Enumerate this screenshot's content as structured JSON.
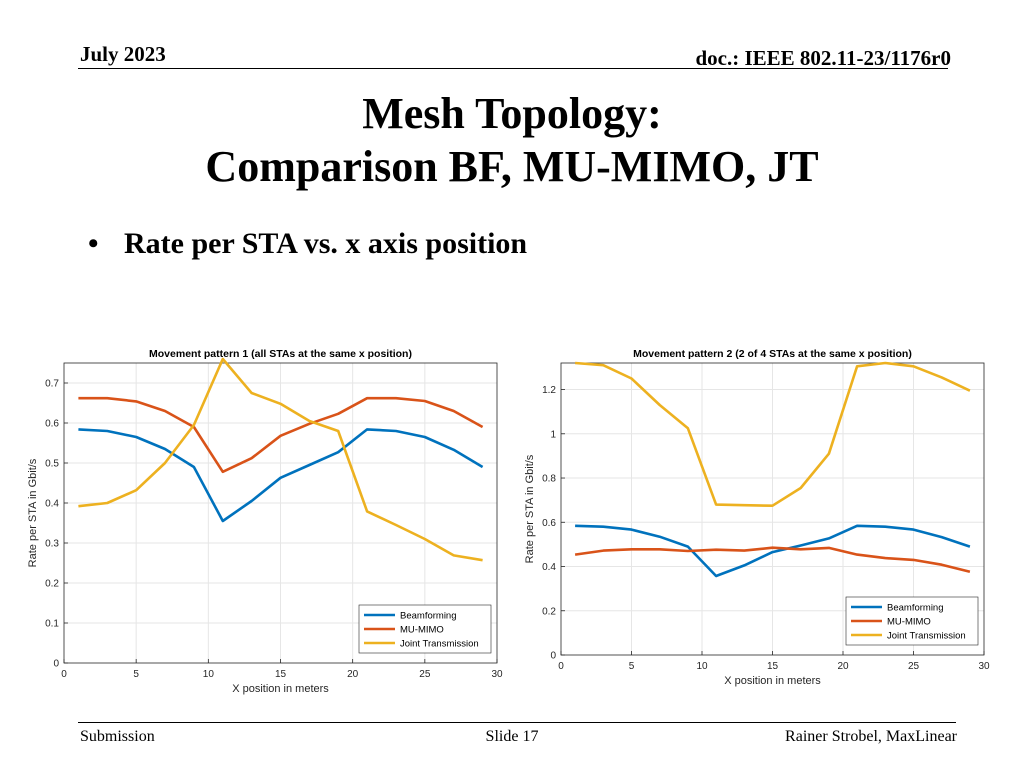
{
  "header": {
    "date": "July 2023",
    "doc": "doc.: IEEE 802.11-23/1176r0"
  },
  "title": {
    "line1": "Mesh Topology:",
    "line2": "Comparison BF, MU-MIMO, JT"
  },
  "bullet": {
    "marker": "•",
    "text": "Rate per STA vs. x axis position"
  },
  "footer": {
    "left": "Submission",
    "center": "Slide 17",
    "right": "Rainer Strobel, MaxLinear"
  },
  "colors": {
    "beamforming": "#0072BD",
    "mu_mimo": "#D95319",
    "joint_transmission": "#EDB120"
  },
  "chart_data": [
    {
      "type": "line",
      "title": "Movement pattern 1 (all STAs at the same x position)",
      "xlabel": "X position in meters",
      "ylabel": "Rate per STA in Gbit/s",
      "xlim": [
        0,
        30
      ],
      "ylim": [
        0,
        0.75
      ],
      "xticks": [
        0,
        5,
        10,
        15,
        20,
        25,
        30
      ],
      "yticks": [
        0,
        0.1,
        0.2,
        0.3,
        0.4,
        0.5,
        0.6,
        0.7
      ],
      "ytick_labels": [
        "0",
        "0.1",
        "0.2",
        "0.3",
        "0.4",
        "0.5",
        "0.6",
        "0.7"
      ],
      "grid": true,
      "legend_position": "bottom-right",
      "x": [
        1,
        3,
        5,
        7,
        9,
        11,
        13,
        15,
        17,
        19,
        21,
        23,
        25,
        27,
        29
      ],
      "series": [
        {
          "name": "Beamforming",
          "color": "#0072BD",
          "values": [
            0.584,
            0.58,
            0.565,
            0.535,
            0.49,
            0.355,
            0.405,
            0.463,
            0.495,
            0.527,
            0.584,
            0.58,
            0.565,
            0.533,
            0.49
          ]
        },
        {
          "name": "MU-MIMO",
          "color": "#D95319",
          "values": [
            0.662,
            0.662,
            0.654,
            0.63,
            0.59,
            0.478,
            0.512,
            0.568,
            0.598,
            0.623,
            0.662,
            0.662,
            0.655,
            0.63,
            0.59
          ]
        },
        {
          "name": "Joint Transmission",
          "color": "#EDB120",
          "values": [
            0.392,
            0.4,
            0.432,
            0.5,
            0.595,
            0.76,
            0.675,
            0.648,
            0.605,
            0.58,
            0.379,
            0.345,
            0.31,
            0.269,
            0.257
          ]
        }
      ]
    },
    {
      "type": "line",
      "title": "Movement pattern 2 (2 of 4 STAs at the same x position)",
      "xlabel": "X position in meters",
      "ylabel": "Rate per STA in Gbit/s",
      "xlim": [
        0,
        30
      ],
      "ylim": [
        0,
        1.32
      ],
      "xticks": [
        0,
        5,
        10,
        15,
        20,
        25,
        30
      ],
      "yticks": [
        0,
        0.2,
        0.4,
        0.6,
        0.8,
        1,
        1.2
      ],
      "ytick_labels": [
        "0",
        "0.2",
        "0.4",
        "0.6",
        "0.8",
        "1",
        "1.2"
      ],
      "grid": true,
      "legend_position": "bottom-right",
      "x": [
        1,
        3,
        5,
        7,
        9,
        11,
        13,
        15,
        17,
        19,
        21,
        23,
        25,
        27,
        29
      ],
      "series": [
        {
          "name": "Beamforming",
          "color": "#0072BD",
          "values": [
            0.584,
            0.58,
            0.567,
            0.535,
            0.49,
            0.357,
            0.405,
            0.465,
            0.495,
            0.527,
            0.584,
            0.58,
            0.567,
            0.533,
            0.49
          ]
        },
        {
          "name": "MU-MIMO",
          "color": "#D95319",
          "values": [
            0.454,
            0.472,
            0.478,
            0.478,
            0.47,
            0.476,
            0.472,
            0.485,
            0.478,
            0.484,
            0.454,
            0.438,
            0.43,
            0.408,
            0.376
          ]
        },
        {
          "name": "Joint Transmission",
          "color": "#EDB120",
          "values": [
            1.32,
            1.31,
            1.25,
            1.13,
            1.025,
            0.68,
            0.677,
            0.675,
            0.755,
            0.91,
            1.305,
            1.32,
            1.305,
            1.255,
            1.195
          ]
        }
      ]
    }
  ]
}
